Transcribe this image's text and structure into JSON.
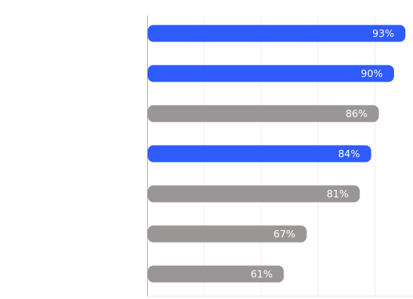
{
  "chart_data": {
    "type": "bar",
    "orientation": "horizontal",
    "categories": [
      null,
      null,
      null,
      null,
      null,
      null,
      null
    ],
    "values": [
      93,
      90,
      86,
      84,
      81,
      67,
      61
    ],
    "value_labels": [
      "93%",
      "90%",
      "86%",
      "84%",
      "81%",
      "67%",
      "61%"
    ],
    "colors": [
      "#2f5bff",
      "#2f5bff",
      "#9a9695",
      "#2f5bff",
      "#9a9695",
      "#9a9695",
      "#9a9695"
    ],
    "xlim": [
      25,
      95
    ],
    "xticks": [
      40,
      55,
      70,
      85
    ],
    "grid": true
  }
}
